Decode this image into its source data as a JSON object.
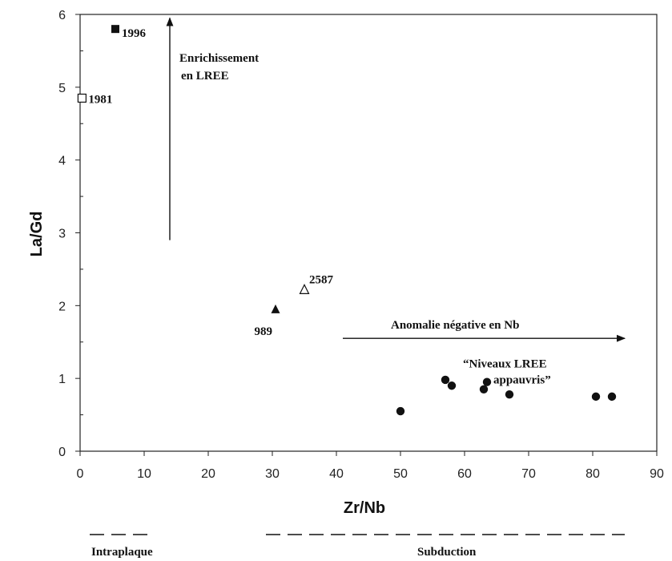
{
  "chart_data": {
    "type": "scatter",
    "xlabel": "Zr/Nb",
    "ylabel": "La/Gd",
    "xlim": [
      0,
      90
    ],
    "ylim": [
      0,
      6
    ],
    "xticks": [
      "0",
      "10",
      "20",
      "30",
      "40",
      "50",
      "60",
      "70",
      "80",
      "90"
    ],
    "yticks": [
      "0",
      "1",
      "2",
      "3",
      "4",
      "5",
      "6"
    ],
    "grid": false,
    "labeled_points": [
      {
        "label": "1996",
        "x": 5.5,
        "y": 5.8,
        "marker": "filled-square"
      },
      {
        "label": "1981",
        "x": 0.3,
        "y": 4.85,
        "marker": "open-square"
      },
      {
        "label": "989",
        "x": 30.5,
        "y": 1.95,
        "marker": "filled-triangle"
      },
      {
        "label": "2587",
        "x": 35,
        "y": 2.22,
        "marker": "open-triangle"
      }
    ],
    "series": [
      {
        "marker": "filled-circle",
        "points": [
          {
            "x": 50,
            "y": 0.55
          },
          {
            "x": 57,
            "y": 0.98
          },
          {
            "x": 58,
            "y": 0.9
          },
          {
            "x": 63,
            "y": 0.85
          },
          {
            "x": 63.5,
            "y": 0.95
          },
          {
            "x": 67,
            "y": 0.78
          },
          {
            "x": 80.5,
            "y": 0.75
          },
          {
            "x": 83,
            "y": 0.75
          }
        ]
      }
    ],
    "annotations": {
      "enrichment_line1": "Enrichissement",
      "enrichment_line2": "en LREE",
      "anomaly": "Anomalie  négative en Nb",
      "depleted_line1": "“Niveaux LREE",
      "depleted_line2": "appauvris”"
    },
    "arrows": [
      {
        "from": {
          "x": 14,
          "y": 2.9
        },
        "to": {
          "x": 14,
          "y": 5.95
        }
      },
      {
        "from": {
          "x": 41,
          "y": 1.55
        },
        "to": {
          "x": 85,
          "y": 1.55
        }
      }
    ],
    "ranges": [
      {
        "label": "Intraplaque",
        "from_x": 1.5,
        "to_x": 10.5
      },
      {
        "label": "Subduction",
        "from_x": 29,
        "to_x": 85
      }
    ]
  }
}
